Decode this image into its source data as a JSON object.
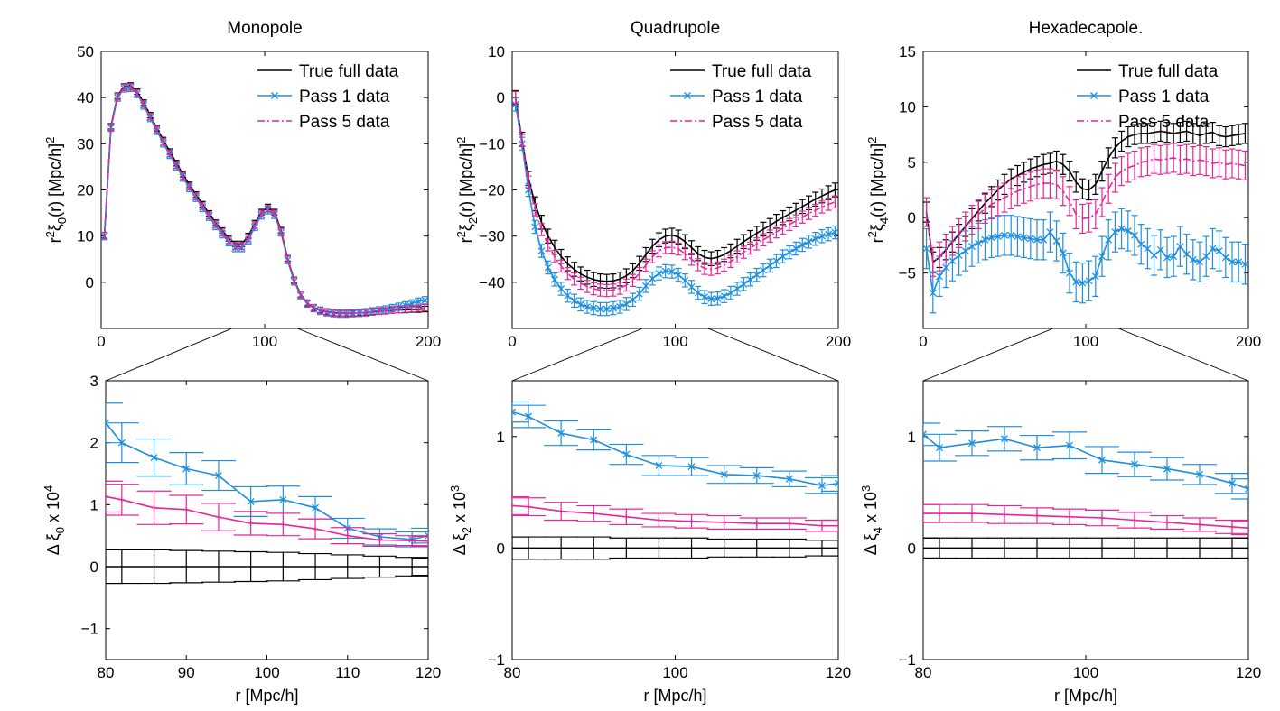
{
  "colors": {
    "true": "#000000",
    "pass1": "#1e8fe0",
    "pass5": "#e8249a"
  },
  "chart_data": [
    {
      "type": "line",
      "title": "Monopole",
      "xlabel": "",
      "ylabel_parts": [
        "r",
        "2",
        "ξ",
        "0",
        "(r) [Mpc/h]",
        "2"
      ],
      "xlim": [
        0,
        200
      ],
      "ylim": [
        -10,
        50
      ],
      "xticks": [
        "0",
        "100",
        "200"
      ],
      "yticks": [
        "0",
        "10",
        "20",
        "30",
        "40",
        "50"
      ],
      "legend": [
        "True full data",
        "Pass 1 data",
        "Pass 5 data"
      ],
      "x": [
        2,
        6,
        10,
        14,
        18,
        22,
        26,
        30,
        34,
        38,
        42,
        46,
        50,
        54,
        58,
        62,
        66,
        70,
        74,
        78,
        82,
        86,
        90,
        94,
        98,
        102,
        106,
        110,
        114,
        118,
        122,
        126,
        130,
        134,
        138,
        142,
        146,
        150,
        154,
        158,
        162,
        166,
        170,
        174,
        178,
        182,
        186,
        190,
        194,
        198
      ],
      "series": [
        {
          "name": "True full data",
          "values": [
            10.2,
            33.8,
            40.4,
            42.4,
            42.6,
            41.3,
            38.9,
            36.2,
            33.4,
            30.8,
            28.3,
            25.8,
            23.4,
            21.1,
            19.0,
            16.9,
            14.9,
            12.9,
            11.2,
            9.5,
            8.3,
            8.3,
            10.0,
            12.8,
            15.2,
            16.3,
            15.2,
            11.3,
            5.2,
            0.5,
            -2.6,
            -4.5,
            -5.5,
            -6.0,
            -6.4,
            -6.6,
            -6.7,
            -6.7,
            -6.7,
            -6.6,
            -6.5,
            -6.4,
            -6.3,
            -6.2,
            -6.1,
            -6.0,
            -6.0,
            -5.9,
            -5.9,
            -5.8
          ],
          "err": 0.6
        },
        {
          "name": "Pass 1 data",
          "values": [
            10.0,
            33.5,
            40.0,
            42.0,
            42.1,
            40.8,
            38.3,
            35.6,
            32.8,
            30.1,
            27.6,
            25.1,
            22.7,
            20.4,
            18.3,
            16.1,
            14.2,
            12.2,
            10.4,
            8.7,
            7.4,
            7.4,
            9.1,
            12.0,
            14.5,
            15.6,
            14.6,
            10.8,
            4.8,
            0.2,
            -2.8,
            -4.6,
            -5.6,
            -6.2,
            -6.5,
            -6.7,
            -6.8,
            -6.8,
            -6.7,
            -6.6,
            -6.5,
            -6.3,
            -6.1,
            -5.9,
            -5.6,
            -5.3,
            -5.0,
            -4.6,
            -4.2,
            -3.9
          ],
          "err": 0.8
        },
        {
          "name": "Pass 5 data",
          "values": [
            10.1,
            33.6,
            40.2,
            42.2,
            42.3,
            41.0,
            38.6,
            35.9,
            33.1,
            30.4,
            27.9,
            25.4,
            23.0,
            20.7,
            18.6,
            16.5,
            14.5,
            12.6,
            10.8,
            9.1,
            7.9,
            7.9,
            9.6,
            12.4,
            14.9,
            15.9,
            14.9,
            11.0,
            5.0,
            0.3,
            -2.7,
            -4.6,
            -5.6,
            -6.1,
            -6.5,
            -6.7,
            -6.8,
            -6.8,
            -6.7,
            -6.7,
            -6.6,
            -6.4,
            -6.3,
            -6.2,
            -6.0,
            -5.9,
            -5.8,
            -5.7,
            -5.6,
            -5.5
          ],
          "err": 0.7
        }
      ]
    },
    {
      "type": "line",
      "title": "Quadrupole",
      "xlabel": "",
      "ylabel_parts": [
        "r",
        "2",
        "ξ",
        "2",
        "(r) [Mpc/h]",
        "2"
      ],
      "xlim": [
        0,
        200
      ],
      "ylim": [
        -50,
        10
      ],
      "xticks": [
        "0",
        "100",
        "200"
      ],
      "yticks": [
        "−40",
        "−30",
        "−20",
        "−10",
        "0",
        "10"
      ],
      "legend": [
        "True full data",
        "Pass 1 data",
        "Pass 5 data"
      ],
      "x": [
        2,
        6,
        10,
        14,
        18,
        22,
        26,
        30,
        34,
        38,
        42,
        46,
        50,
        54,
        58,
        62,
        66,
        70,
        74,
        78,
        82,
        86,
        90,
        94,
        98,
        102,
        106,
        110,
        114,
        118,
        122,
        126,
        130,
        134,
        138,
        142,
        146,
        150,
        154,
        158,
        162,
        166,
        170,
        174,
        178,
        182,
        186,
        190,
        194,
        198
      ],
      "series": [
        {
          "name": "True full data",
          "values": [
            0.0,
            -9.0,
            -17.5,
            -23.0,
            -27.0,
            -30.0,
            -32.4,
            -34.4,
            -36.0,
            -37.2,
            -38.2,
            -38.9,
            -39.4,
            -39.7,
            -39.8,
            -39.7,
            -39.3,
            -38.6,
            -37.5,
            -35.9,
            -34.0,
            -32.2,
            -30.8,
            -30.0,
            -29.8,
            -30.2,
            -31.2,
            -32.5,
            -33.8,
            -34.6,
            -34.9,
            -34.6,
            -34.0,
            -33.2,
            -32.2,
            -31.2,
            -30.3,
            -29.4,
            -28.5,
            -27.7,
            -26.8,
            -26.0,
            -25.2,
            -24.4,
            -23.6,
            -22.8,
            -22.0,
            -21.3,
            -20.6,
            -20.0
          ],
          "err": 1.5
        },
        {
          "name": "Pass 1 data",
          "values": [
            -1.5,
            -10.0,
            -20.0,
            -28.0,
            -33.2,
            -36.8,
            -39.4,
            -41.4,
            -42.9,
            -44.0,
            -44.8,
            -45.3,
            -45.6,
            -45.8,
            -45.8,
            -45.6,
            -45.3,
            -44.7,
            -43.8,
            -42.5,
            -40.8,
            -39.2,
            -38.1,
            -37.6,
            -37.7,
            -38.4,
            -39.6,
            -41.0,
            -42.3,
            -43.2,
            -43.6,
            -43.5,
            -43.0,
            -42.3,
            -41.4,
            -40.4,
            -39.4,
            -38.4,
            -37.4,
            -36.4,
            -35.4,
            -34.4,
            -33.5,
            -32.7,
            -31.9,
            -31.2,
            -30.6,
            -30.0,
            -29.6,
            -29.2
          ],
          "err": 1.4
        },
        {
          "name": "Pass 5 data",
          "values": [
            0.0,
            -9.3,
            -18.3,
            -24.3,
            -28.6,
            -31.9,
            -34.4,
            -36.5,
            -38.1,
            -39.3,
            -40.2,
            -40.9,
            -41.4,
            -41.7,
            -41.8,
            -41.7,
            -41.3,
            -40.6,
            -39.6,
            -38.1,
            -36.3,
            -34.5,
            -33.2,
            -32.5,
            -32.4,
            -32.8,
            -33.8,
            -35.0,
            -36.2,
            -37.0,
            -37.2,
            -36.9,
            -36.3,
            -35.5,
            -34.5,
            -33.5,
            -32.6,
            -31.7,
            -30.8,
            -30.0,
            -29.1,
            -28.3,
            -27.5,
            -26.7,
            -25.9,
            -25.1,
            -24.4,
            -23.7,
            -23.1,
            -22.6
          ],
          "err": 1.3
        }
      ]
    },
    {
      "type": "line",
      "title": "Hexadecapole.",
      "xlabel": "",
      "ylabel_parts": [
        "r",
        "2",
        "ξ",
        "4",
        "(r) [Mpc/h]",
        "2"
      ],
      "xlim": [
        0,
        200
      ],
      "ylim": [
        -10,
        15
      ],
      "xticks": [
        "0",
        "100",
        "200"
      ],
      "yticks": [
        "−5",
        "0",
        "5",
        "10",
        "15"
      ],
      "legend": [
        "True full data",
        "Pass 1 data",
        "Pass 5 data"
      ],
      "x": [
        2,
        6,
        10,
        14,
        18,
        22,
        26,
        30,
        34,
        38,
        42,
        46,
        50,
        54,
        58,
        62,
        66,
        70,
        74,
        78,
        82,
        86,
        90,
        94,
        98,
        102,
        106,
        110,
        114,
        118,
        122,
        126,
        130,
        134,
        138,
        142,
        146,
        150,
        154,
        158,
        162,
        166,
        170,
        174,
        178,
        182,
        186,
        190,
        194,
        198
      ],
      "series": [
        {
          "name": "True full data",
          "values": [
            0.5,
            -4.0,
            -3.6,
            -2.9,
            -2.2,
            -1.5,
            -0.8,
            -0.1,
            0.6,
            1.3,
            1.9,
            2.5,
            3.0,
            3.5,
            3.8,
            4.1,
            4.4,
            4.6,
            4.8,
            4.9,
            5.1,
            4.8,
            4.2,
            3.2,
            2.6,
            2.5,
            3.0,
            4.2,
            5.4,
            6.3,
            6.9,
            7.3,
            7.5,
            7.6,
            7.6,
            7.7,
            7.8,
            7.7,
            7.6,
            7.7,
            7.8,
            7.6,
            7.4,
            7.6,
            7.7,
            7.4,
            7.3,
            7.4,
            7.5,
            7.6
          ],
          "err": 0.9
        },
        {
          "name": "Pass 1 data",
          "values": [
            -2.8,
            -6.8,
            -5.3,
            -4.5,
            -3.9,
            -3.4,
            -3.0,
            -2.6,
            -2.3,
            -2.0,
            -1.8,
            -1.7,
            -1.6,
            -1.6,
            -1.7,
            -1.8,
            -1.9,
            -2.0,
            -2.0,
            -1.3,
            -2.1,
            -3.2,
            -5.0,
            -5.8,
            -5.9,
            -5.7,
            -5.3,
            -3.5,
            -2.0,
            -1.3,
            -1.0,
            -1.2,
            -1.6,
            -2.4,
            -2.8,
            -3.4,
            -2.9,
            -3.6,
            -3.5,
            -2.6,
            -3.3,
            -3.8,
            -4.0,
            -3.5,
            -2.8,
            -3.0,
            -3.6,
            -4.0,
            -4.0,
            -4.2
          ],
          "err": 1.8
        },
        {
          "name": "Pass 5 data",
          "values": [
            0.5,
            -4.0,
            -3.5,
            -2.8,
            -2.1,
            -1.4,
            -0.8,
            -0.2,
            0.3,
            0.8,
            1.2,
            1.5,
            1.8,
            2.1,
            2.4,
            2.6,
            2.8,
            3.0,
            3.1,
            3.1,
            3.0,
            2.4,
            1.5,
            0.3,
            -0.1,
            0.0,
            0.3,
            1.4,
            2.6,
            3.6,
            4.2,
            4.5,
            4.7,
            5.0,
            5.1,
            5.3,
            5.2,
            5.3,
            5.4,
            5.2,
            5.3,
            5.1,
            5.2,
            5.1,
            4.9,
            5.0,
            4.8,
            4.9,
            4.8,
            4.7
          ],
          "err": 1.3
        }
      ]
    },
    {
      "type": "line",
      "title": "",
      "xlabel": "r [Mpc/h]",
      "ylabel_parts": [
        "Δ ξ",
        "0",
        " x 10",
        "4"
      ],
      "xlim": [
        80,
        120
      ],
      "ylim": [
        -1.5,
        3
      ],
      "xticks": [
        "80",
        "90",
        "100",
        "110",
        "120"
      ],
      "yticks": [
        "−1",
        "0",
        "1",
        "2",
        "3"
      ],
      "legend": [],
      "x": [
        80,
        82,
        86,
        90,
        94,
        98,
        102,
        106,
        110,
        114,
        118,
        120
      ],
      "series": [
        {
          "name": "True full data",
          "values": [
            0,
            0,
            0,
            0,
            0,
            0,
            0,
            0,
            0,
            0,
            0,
            0
          ],
          "err_list": [
            0.27,
            0.27,
            0.27,
            0.26,
            0.25,
            0.24,
            0.23,
            0.21,
            0.19,
            0.17,
            0.15,
            0.14
          ]
        },
        {
          "name": "Pass 1 data",
          "values": [
            2.32,
            2.0,
            1.76,
            1.58,
            1.47,
            1.05,
            1.08,
            0.95,
            0.62,
            0.48,
            0.44,
            0.5
          ],
          "err_list": [
            0.32,
            0.32,
            0.3,
            0.26,
            0.24,
            0.24,
            0.22,
            0.18,
            0.16,
            0.13,
            0.12,
            0.12
          ]
        },
        {
          "name": "Pass 5 data",
          "values": [
            1.13,
            1.08,
            0.95,
            0.92,
            0.8,
            0.7,
            0.68,
            0.61,
            0.5,
            0.43,
            0.42,
            0.41
          ],
          "err_list": [
            0.25,
            0.25,
            0.27,
            0.23,
            0.22,
            0.19,
            0.18,
            0.16,
            0.13,
            0.1,
            0.08,
            0.08
          ]
        }
      ]
    },
    {
      "type": "line",
      "title": "",
      "xlabel": "r [Mpc/h]",
      "ylabel_parts": [
        "Δ ξ",
        "2",
        " x 10",
        "3"
      ],
      "xlim": [
        80,
        120
      ],
      "ylim": [
        -1,
        1.5
      ],
      "xticks": [
        "80",
        "100",
        "120"
      ],
      "yticks": [
        "−1",
        "0",
        "1"
      ],
      "legend": [],
      "x": [
        80,
        82,
        86,
        90,
        94,
        98,
        102,
        106,
        110,
        114,
        118,
        120
      ],
      "series": [
        {
          "name": "True full data",
          "values": [
            0,
            0,
            0,
            0,
            0,
            0,
            0,
            0,
            0,
            0,
            0,
            0
          ],
          "err_list": [
            0.1,
            0.1,
            0.1,
            0.1,
            0.09,
            0.09,
            0.09,
            0.08,
            0.08,
            0.08,
            0.07,
            0.07
          ]
        },
        {
          "name": "Pass 1 data",
          "values": [
            1.22,
            1.18,
            1.03,
            0.97,
            0.84,
            0.74,
            0.73,
            0.66,
            0.65,
            0.62,
            0.56,
            0.58
          ],
          "err_list": [
            0.09,
            0.1,
            0.11,
            0.09,
            0.09,
            0.09,
            0.08,
            0.08,
            0.07,
            0.07,
            0.07,
            0.07
          ]
        },
        {
          "name": "Pass 5 data",
          "values": [
            0.38,
            0.37,
            0.33,
            0.31,
            0.28,
            0.25,
            0.24,
            0.23,
            0.22,
            0.22,
            0.2,
            0.2
          ],
          "err_list": [
            0.08,
            0.08,
            0.08,
            0.07,
            0.07,
            0.06,
            0.06,
            0.06,
            0.05,
            0.05,
            0.05,
            0.05
          ]
        }
      ]
    },
    {
      "type": "line",
      "title": "",
      "xlabel": "r [Mpc/h]",
      "ylabel_parts": [
        "Δ ξ",
        "4",
        " x 10",
        "3"
      ],
      "xlim": [
        80,
        120
      ],
      "ylim": [
        -1,
        1.5
      ],
      "xticks": [
        "80",
        "100",
        "120"
      ],
      "yticks": [
        "−1",
        "0",
        "1"
      ],
      "legend": [],
      "x": [
        80,
        82,
        86,
        90,
        94,
        98,
        102,
        106,
        110,
        114,
        118,
        120
      ],
      "series": [
        {
          "name": "True full data",
          "values": [
            0,
            0,
            0,
            0,
            0,
            0,
            0,
            0,
            0,
            0,
            0,
            0
          ],
          "err_list": [
            0.09,
            0.09,
            0.09,
            0.09,
            0.09,
            0.09,
            0.09,
            0.09,
            0.09,
            0.09,
            0.09,
            0.09
          ]
        },
        {
          "name": "Pass 1 data",
          "values": [
            1.02,
            0.9,
            0.94,
            0.98,
            0.9,
            0.92,
            0.79,
            0.75,
            0.71,
            0.66,
            0.58,
            0.53
          ],
          "err_list": [
            0.1,
            0.12,
            0.11,
            0.11,
            0.11,
            0.12,
            0.12,
            0.11,
            0.1,
            0.09,
            0.09,
            0.09
          ]
        },
        {
          "name": "Pass 5 data",
          "values": [
            0.31,
            0.31,
            0.31,
            0.3,
            0.29,
            0.28,
            0.27,
            0.25,
            0.23,
            0.21,
            0.19,
            0.18
          ],
          "err_list": [
            0.08,
            0.08,
            0.08,
            0.08,
            0.07,
            0.07,
            0.07,
            0.07,
            0.06,
            0.06,
            0.06,
            0.06
          ]
        }
      ]
    }
  ]
}
